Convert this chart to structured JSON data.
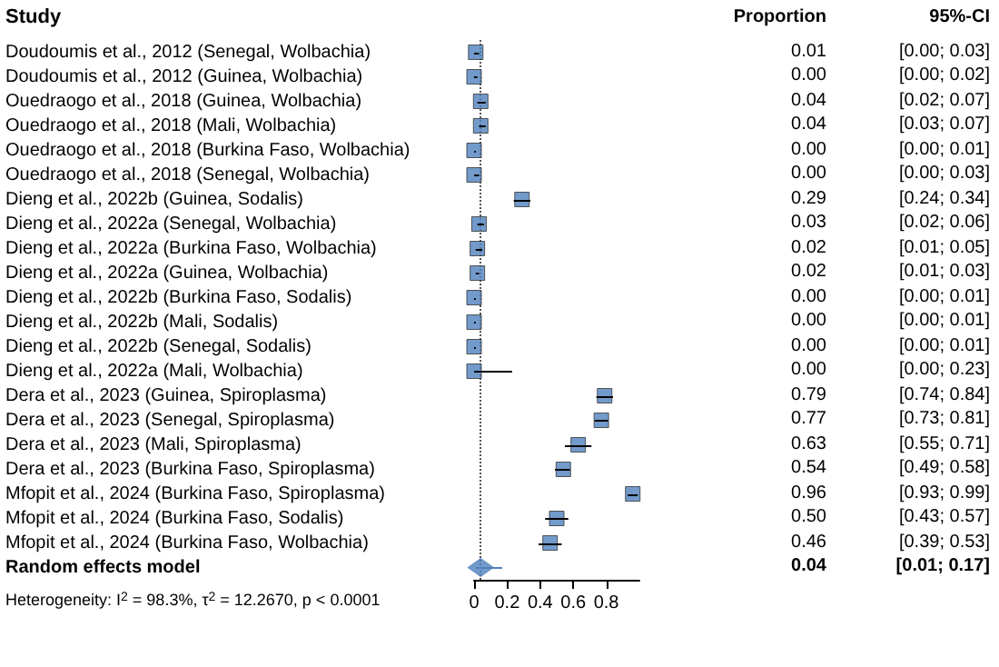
{
  "chart_data": [
    {
      "type": "scatter",
      "orientation": "horizontal",
      "ylabel": "Study",
      "categories": [
        "Doudoumis et al., 2012 (Senegal, Wolbachia)",
        "Doudoumis et al., 2012 (Guinea, Wolbachia)",
        "Ouedraogo et al., 2018 (Guinea, Wolbachia)",
        "Ouedraogo et al., 2018 (Mali, Wolbachia)",
        "Ouedraogo et al., 2018 (Burkina Faso, Wolbachia)",
        "Ouedraogo et al., 2018 (Senegal, Wolbachia)",
        "Dieng et al., 2022b (Guinea, Sodalis)",
        "Dieng et al., 2022a (Senegal, Wolbachia)",
        "Dieng et al., 2022a (Burkina Faso, Wolbachia)",
        "Dieng et al., 2022a (Guinea, Wolbachia)",
        "Dieng et al., 2022b (Burkina Faso, Sodalis)",
        "Dieng et al., 2022b (Mali, Sodalis)",
        "Dieng et al., 2022b (Senegal, Sodalis)",
        "Dieng et al., 2022a (Mali, Wolbachia)",
        "Dera et al., 2023 (Guinea, Spiroplasma)",
        "Dera et al., 2023 (Senegal, Spiroplasma)",
        "Dera et al., 2023 (Mali, Spiroplasma)",
        "Dera et al., 2023 (Burkina Faso, Spiroplasma)",
        "Mfopit et al., 2024 (Burkina Faso, Spiroplasma)",
        "Mfopit et al., 2024 (Burkina Faso, Sodalis)",
        "Mfopit et al., 2024 (Burkina Faso, Wolbachia)",
        "Random effects model"
      ],
      "series": [
        {
          "color": "#4f81bd",
          "marker": "square",
          "values": [
            0.01,
            0.0,
            0.04,
            0.04,
            0.0,
            0.0,
            0.29,
            0.03,
            0.02,
            0.02,
            0.0,
            0.0,
            0.0,
            0.0,
            0.79,
            0.77,
            0.63,
            0.54,
            0.96,
            0.5,
            0.46,
            null
          ],
          "errors": [
            [
              0.0,
              0.03
            ],
            [
              0.0,
              0.02
            ],
            [
              0.02,
              0.07
            ],
            [
              0.03,
              0.07
            ],
            [
              0.0,
              0.01
            ],
            [
              0.0,
              0.03
            ],
            [
              0.24,
              0.34
            ],
            [
              0.02,
              0.06
            ],
            [
              0.01,
              0.05
            ],
            [
              0.01,
              0.03
            ],
            [
              0.0,
              0.01
            ],
            [
              0.0,
              0.01
            ],
            [
              0.0,
              0.01
            ],
            [
              0.0,
              0.23
            ],
            [
              0.74,
              0.84
            ],
            [
              0.73,
              0.81
            ],
            [
              0.55,
              0.71
            ],
            [
              0.49,
              0.58
            ],
            [
              0.93,
              0.99
            ],
            [
              0.43,
              0.57
            ],
            [
              0.39,
              0.53
            ],
            null
          ]
        },
        {
          "color": "#4f81bd",
          "marker": "diamond",
          "values": [
            null,
            null,
            null,
            null,
            null,
            null,
            null,
            null,
            null,
            null,
            null,
            null,
            null,
            null,
            null,
            null,
            null,
            null,
            null,
            null,
            null,
            0.04
          ],
          "errors": [
            null,
            null,
            null,
            null,
            null,
            null,
            null,
            null,
            null,
            null,
            null,
            null,
            null,
            null,
            null,
            null,
            null,
            null,
            null,
            null,
            null,
            [
              0.01,
              0.17
            ]
          ]
        }
      ],
      "xlim": [
        0,
        1
      ],
      "xticks": [
        0,
        0.2,
        0.4,
        0.6,
        0.8
      ],
      "ref_lines": [
        {
          "axis": "x",
          "value": 0.04,
          "line_style": "dotted",
          "color": "#555555"
        }
      ],
      "annotations": [
        "Heterogeneity: I$^{2}$ = 98.3%, τ$^{2}$ = 12.2670, p < 0.0001"
      ],
      "grid": false
    },
    {
      "type": "other",
      "annotations": [
        "Proportion",
        "95%-CI",
        "0.01",
        "[0.00; 0.03]",
        "0.00",
        "[0.00; 0.02]",
        "0.04",
        "[0.02; 0.07]",
        "0.04",
        "[0.03; 0.07]",
        "0.00",
        "[0.00; 0.01]",
        "0.00",
        "[0.00; 0.03]",
        "0.29",
        "[0.24; 0.34]",
        "0.03",
        "[0.02; 0.06]",
        "0.02",
        "[0.01; 0.05]",
        "0.02",
        "[0.01; 0.03]",
        "0.00",
        "[0.00; 0.01]",
        "0.00",
        "[0.00; 0.01]",
        "0.00",
        "[0.00; 0.01]",
        "0.00",
        "[0.00; 0.23]",
        "0.79",
        "[0.74; 0.84]",
        "0.77",
        "[0.73; 0.81]",
        "0.63",
        "[0.55; 0.71]",
        "0.54",
        "[0.49; 0.58]",
        "0.96",
        "[0.93; 0.99]",
        "0.50",
        "[0.43; 0.57]",
        "0.46",
        "[0.39; 0.53]",
        "0.04",
        "[0.01; 0.17]"
      ]
    }
  ]
}
